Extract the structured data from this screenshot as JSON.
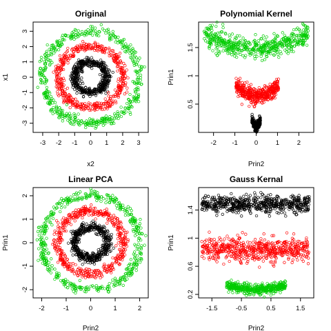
{
  "colors": {
    "outer": "#00cc00",
    "middle": "#ff0000",
    "inner": "#000000"
  },
  "marker": "open-circle",
  "chart_data": [
    {
      "type": "scatter",
      "title": "Original",
      "xlabel": "x2",
      "ylabel": "x1",
      "xlim": [
        -3.6,
        3.6
      ],
      "ylim": [
        -3.6,
        3.6
      ],
      "xticks": [
        -3,
        -2,
        -1,
        0,
        1,
        2,
        3
      ],
      "yticks": [
        -3,
        -2,
        -1,
        0,
        1,
        2,
        3
      ],
      "series": [
        {
          "color_key": "inner",
          "shape": "ring",
          "cx": 0,
          "cy": 0,
          "r": 1.0,
          "spread": 0.15,
          "n": 500
        },
        {
          "color_key": "middle",
          "shape": "ring",
          "cx": 0,
          "cy": 0,
          "r": 2.0,
          "spread": 0.15,
          "n": 500
        },
        {
          "color_key": "outer",
          "shape": "ring",
          "cx": 0,
          "cy": 0,
          "r": 3.0,
          "spread": 0.15,
          "n": 500
        }
      ]
    },
    {
      "type": "scatter",
      "title": "Polynomial Kernel",
      "xlabel": "Prin2",
      "ylabel": "Prin1",
      "xlim": [
        -2.7,
        2.7
      ],
      "ylim": [
        0.0,
        1.95
      ],
      "xticks": [
        -2,
        -1,
        0,
        1,
        2
      ],
      "yticks": [
        0.5,
        1.0,
        1.5
      ],
      "series": [
        {
          "color_key": "inner",
          "shape": "band",
          "xmin": -0.2,
          "xmax": 0.2,
          "ybase": 0.22,
          "ymid": 0.09,
          "curve": 1.3,
          "noise": 0.04,
          "n": 300
        },
        {
          "color_key": "middle",
          "shape": "band",
          "xmin": -0.95,
          "xmax": 1.05,
          "ybase": 0.84,
          "ymid": 0.64,
          "curve": 2,
          "noise": 0.07,
          "n": 450
        },
        {
          "color_key": "outer",
          "shape": "band",
          "xmin": -2.45,
          "xmax": 2.45,
          "ybase": 1.72,
          "ymid": 1.5,
          "curve": 2,
          "noise": 0.09,
          "n": 550
        }
      ]
    },
    {
      "type": "scatter",
      "title": "Linear PCA",
      "xlabel": "Prin2",
      "ylabel": "Prin1",
      "xlim": [
        -2.35,
        2.35
      ],
      "ylim": [
        -2.35,
        2.35
      ],
      "xticks": [
        -2,
        -1,
        0,
        1,
        2
      ],
      "yticks": [
        -2,
        -1,
        0,
        1,
        2
      ],
      "series": [
        {
          "color_key": "inner",
          "shape": "ring",
          "cx": 0,
          "cy": 0,
          "r": 0.68,
          "spread": 0.1,
          "n": 500
        },
        {
          "color_key": "middle",
          "shape": "ring",
          "cx": 0,
          "cy": 0,
          "r": 1.35,
          "spread": 0.1,
          "n": 500
        },
        {
          "color_key": "outer",
          "shape": "ring",
          "cx": 0,
          "cy": 0,
          "r": 2.0,
          "spread": 0.1,
          "n": 500
        }
      ]
    },
    {
      "type": "scatter",
      "title": "Gauss Kernal",
      "xlabel": "Prin2",
      "ylabel": "Prin1",
      "xlim": [
        -1.95,
        1.95
      ],
      "ylim": [
        0.15,
        1.72
      ],
      "xticks": [
        -1.5,
        -0.5,
        0.5,
        1.5
      ],
      "yticks": [
        0.2,
        0.6,
        1.0,
        1.4
      ],
      "series": [
        {
          "color_key": "inner",
          "shape": "band",
          "xmin": -1.85,
          "xmax": 1.8,
          "ybase": 1.48,
          "ymid": 1.48,
          "curve": 2,
          "noise": 0.06,
          "n": 600
        },
        {
          "color_key": "middle",
          "shape": "band",
          "xmin": -1.85,
          "xmax": 1.8,
          "ybase": 0.83,
          "ymid": 0.83,
          "curve": 2,
          "noise": 0.08,
          "n": 600
        },
        {
          "color_key": "outer",
          "shape": "band",
          "xmin": -1.0,
          "xmax": 1.0,
          "ybase": 0.33,
          "ymid": 0.27,
          "curve": 2,
          "noise": 0.035,
          "n": 450
        }
      ]
    }
  ]
}
